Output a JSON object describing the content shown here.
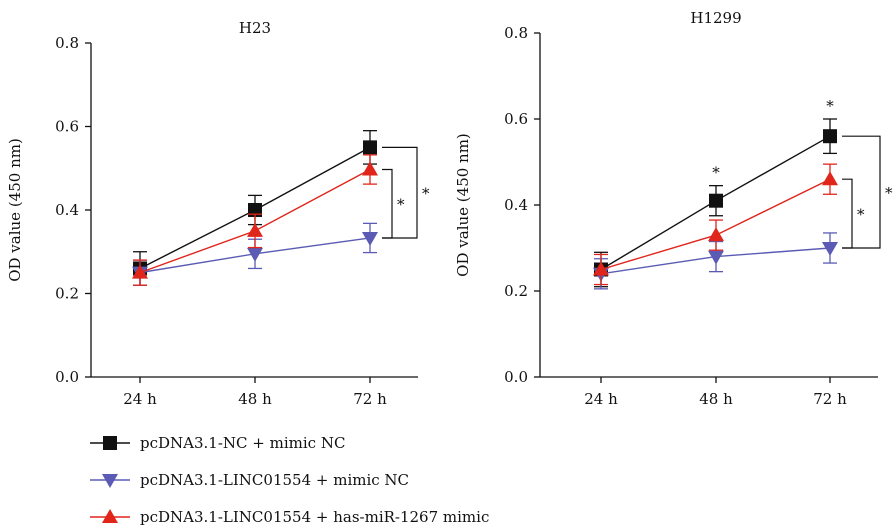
{
  "chart_data": [
    {
      "type": "line",
      "title": "H23",
      "xlabel": "",
      "ylabel": "OD value (450 nm)",
      "categories": [
        "24 h",
        "48 h",
        "72 h"
      ],
      "ylim": [
        0.0,
        0.8
      ],
      "yticks": [
        "0.0",
        "0.2",
        "0.4",
        "0.6",
        "0.8"
      ],
      "series": [
        {
          "name": "pcDNA3.1-NC + mimic NC",
          "marker": "square",
          "color": "#111111",
          "values": [
            0.26,
            0.4,
            0.55
          ],
          "errors": [
            0.04,
            0.035,
            0.04
          ]
        },
        {
          "name": "pcDNA3.1-LINC01554 + mimic NC",
          "marker": "triangle-down",
          "color": "#5b5bb5",
          "values": [
            0.25,
            0.295,
            0.333
          ],
          "errors": [
            0.03,
            0.035,
            0.035
          ]
        },
        {
          "name": "pcDNA3.1-LINC01554 + has-miR-1267 mimic",
          "marker": "triangle-up",
          "color": "#e0251b",
          "values": [
            0.25,
            0.35,
            0.497
          ],
          "errors": [
            0.03,
            0.04,
            0.035
          ]
        }
      ],
      "point_stars": [],
      "brackets": [
        {
          "label": "*",
          "from": 0.497,
          "to": 0.333
        },
        {
          "label": "*",
          "from": 0.55,
          "to": 0.333
        }
      ]
    },
    {
      "type": "line",
      "title": "H1299",
      "xlabel": "",
      "ylabel": "OD value (450 nm)",
      "categories": [
        "24 h",
        "48 h",
        "72 h"
      ],
      "ylim": [
        0.0,
        0.8
      ],
      "yticks": [
        "0.0",
        "0.2",
        "0.4",
        "0.6",
        "0.8"
      ],
      "series": [
        {
          "name": "pcDNA3.1-NC + mimic NC",
          "marker": "square",
          "color": "#111111",
          "values": [
            0.25,
            0.41,
            0.56
          ],
          "errors": [
            0.04,
            0.035,
            0.04
          ]
        },
        {
          "name": "pcDNA3.1-LINC01554 + mimic NC",
          "marker": "triangle-down",
          "color": "#5b5bb5",
          "values": [
            0.24,
            0.28,
            0.3
          ],
          "errors": [
            0.035,
            0.035,
            0.035
          ]
        },
        {
          "name": "pcDNA3.1-LINC01554 + has-miR-1267 mimic",
          "marker": "triangle-up",
          "color": "#e0251b",
          "values": [
            0.25,
            0.33,
            0.46
          ],
          "errors": [
            0.035,
            0.035,
            0.035
          ]
        }
      ],
      "point_stars": [
        {
          "label": "*",
          "category": "48 h"
        },
        {
          "label": "*",
          "category": "72 h"
        }
      ],
      "brackets": [
        {
          "label": "*",
          "from": 0.46,
          "to": 0.3
        },
        {
          "label": "*",
          "from": 0.56,
          "to": 0.3
        }
      ]
    }
  ],
  "legend": {
    "placement": "bottom-left",
    "items": [
      {
        "label": "pcDNA3.1-NC + mimic NC",
        "marker": "square",
        "color": "#111111"
      },
      {
        "label": "pcDNA3.1-LINC01554 + mimic NC",
        "marker": "triangle-down",
        "color": "#5b5bb5"
      },
      {
        "label": "pcDNA3.1-LINC01554 + has-miR-1267 mimic",
        "marker": "triangle-up",
        "color": "#e0251b"
      }
    ]
  }
}
